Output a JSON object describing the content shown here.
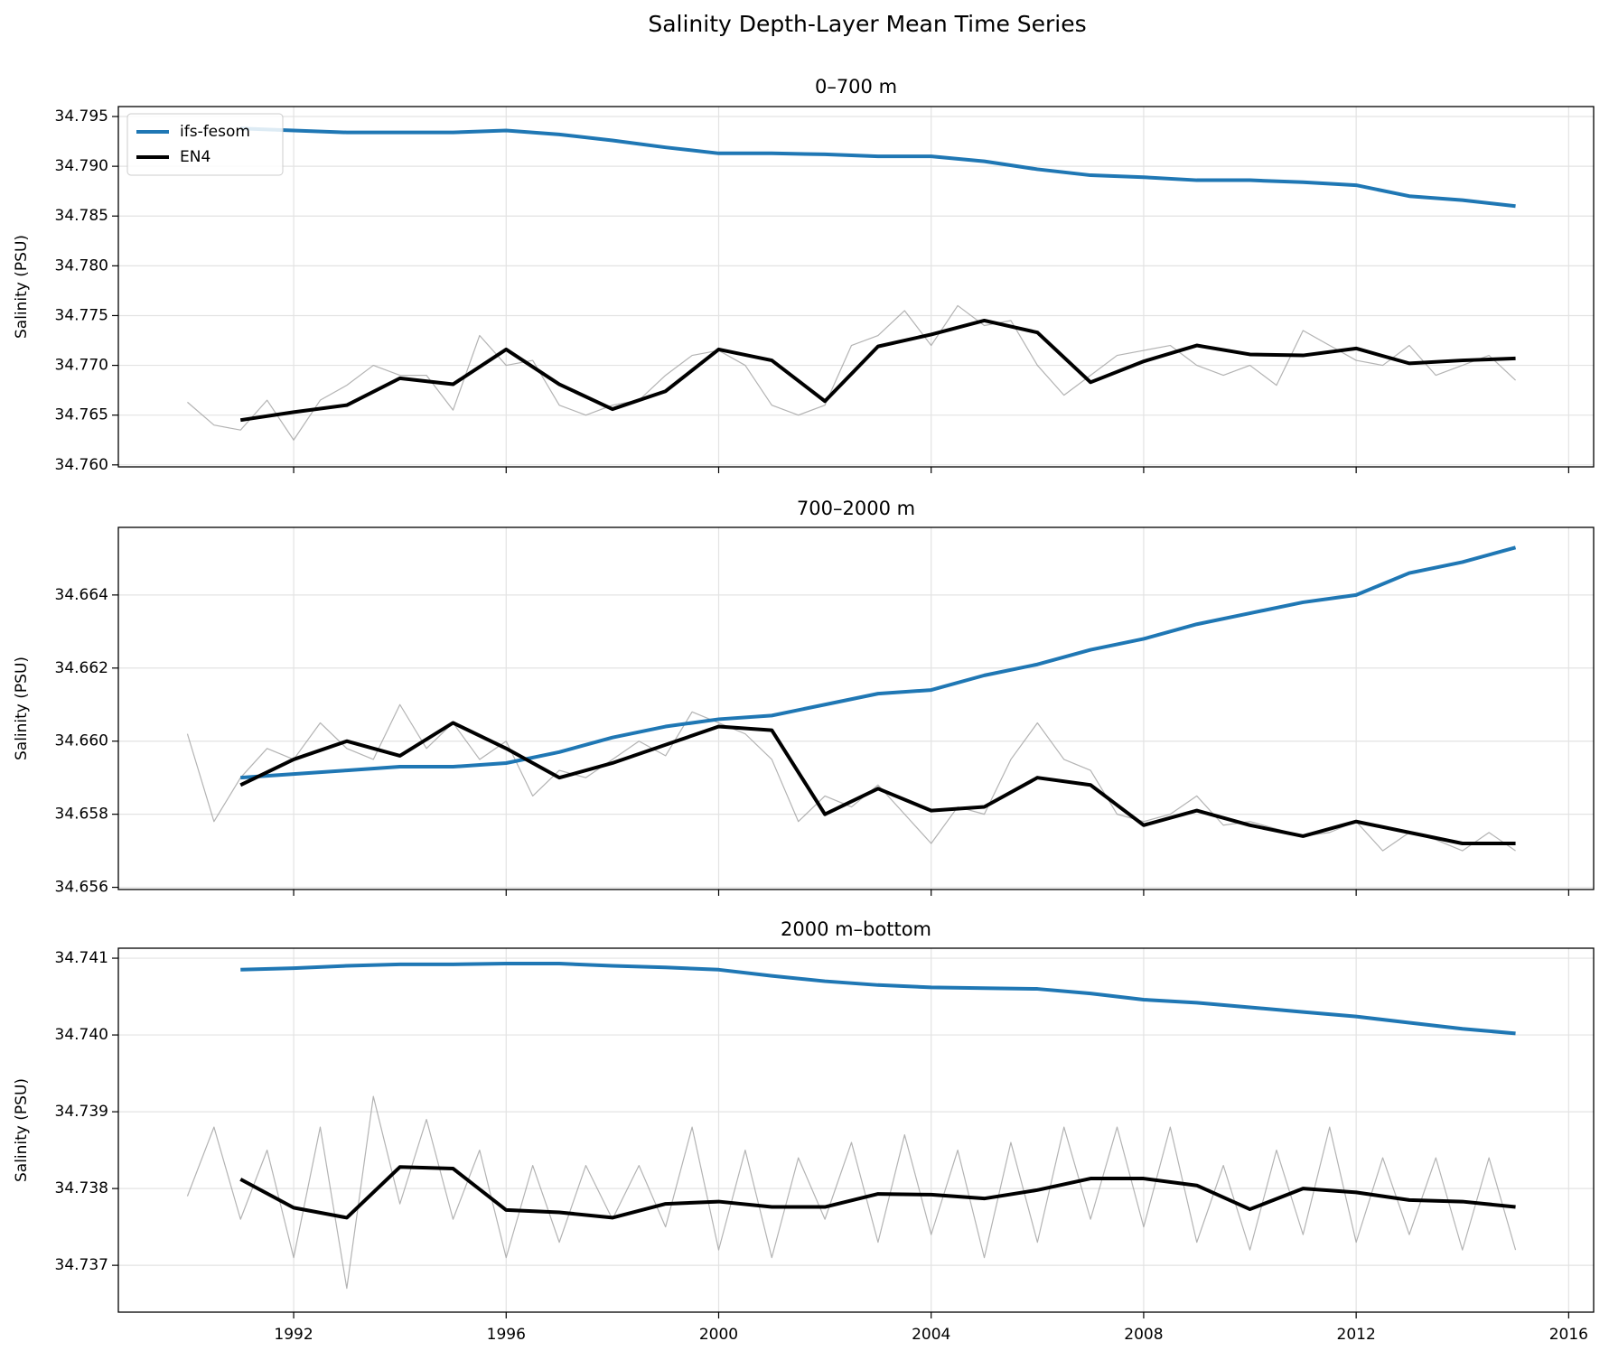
{
  "title": "Salinity Depth-Layer Mean Time Series",
  "chart_data": [
    {
      "type": "line",
      "title": "0–700 m",
      "ylabel": "Salinity (PSU)",
      "grid": true,
      "legend": "upper left",
      "xlim": [
        1988.7,
        2016.47
      ],
      "xticks": [
        1992,
        1996,
        2000,
        2004,
        2008,
        2012,
        2016
      ],
      "ylim": [
        34.7598,
        34.796
      ],
      "yticks": [
        {
          "value": 34.76,
          "label": "34.760"
        },
        34.765,
        {
          "value": 34.77,
          "label": "34.770"
        },
        34.775,
        {
          "value": 34.78,
          "label": "34.780"
        },
        34.785,
        {
          "value": 34.79,
          "label": "34.790"
        },
        34.795
      ],
      "series": [
        {
          "color": "#999999",
          "x": [
            1990,
            1990.5,
            1991,
            1991.5,
            1992,
            1992.5,
            1993,
            1993.5,
            1994,
            1994.5,
            1995,
            1995.5,
            1996,
            1996.5,
            1997,
            1997.5,
            1998,
            1998.5,
            1999,
            1999.5,
            2000,
            2000.5,
            2001,
            2001.5,
            2002,
            2002.5,
            2003,
            2003.5,
            2004,
            2004.5,
            2005,
            2005.5,
            2006,
            2006.5,
            2007,
            2007.5,
            2008,
            2008.5,
            2009,
            2009.5,
            2010,
            2010.5,
            2011,
            2011.5,
            2012,
            2012.5,
            2013,
            2013.5,
            2014,
            2014.5,
            2015
          ],
          "values": [
            34.7663,
            34.764,
            34.7635,
            34.7665,
            34.7625,
            34.7665,
            34.768,
            34.77,
            34.769,
            34.769,
            34.7655,
            34.773,
            34.77,
            34.7705,
            34.766,
            34.765,
            34.766,
            34.7665,
            34.769,
            34.771,
            34.7715,
            34.77,
            34.766,
            34.765,
            34.766,
            34.772,
            34.773,
            34.7755,
            34.772,
            34.776,
            34.774,
            34.7745,
            34.77,
            34.767,
            34.769,
            34.771,
            34.7715,
            34.772,
            34.77,
            34.769,
            34.77,
            34.768,
            34.7735,
            34.772,
            34.7705,
            34.77,
            34.772,
            34.769,
            34.77,
            34.771,
            34.7685
          ]
        },
        {
          "name": "ifs-fesom",
          "color": "#1f77b4",
          "x": [
            1991,
            1992,
            1993,
            1994,
            1995,
            1996,
            1997,
            1998,
            1999,
            2000,
            2001,
            2002,
            2003,
            2004,
            2005,
            2006,
            2007,
            2008,
            2009,
            2010,
            2011,
            2012,
            2013,
            2014,
            2015
          ],
          "values": [
            34.7938,
            34.7936,
            34.7934,
            34.7934,
            34.7934,
            34.7936,
            34.7932,
            34.7926,
            34.7919,
            34.7913,
            34.7913,
            34.7912,
            34.791,
            34.791,
            34.7905,
            34.7897,
            34.7891,
            34.7889,
            34.7886,
            34.7886,
            34.7884,
            34.7881,
            34.787,
            34.7866,
            34.786
          ]
        },
        {
          "name": "EN4",
          "color": "#000000",
          "x": [
            1991,
            1992,
            1993,
            1994,
            1995,
            1996,
            1997,
            1998,
            1999,
            2000,
            2001,
            2002,
            2003,
            2004,
            2005,
            2006,
            2007,
            2008,
            2009,
            2010,
            2011,
            2012,
            2013,
            2014,
            2015
          ],
          "values": [
            34.7645,
            34.7653,
            34.766,
            34.7687,
            34.7681,
            34.7716,
            34.7681,
            34.7656,
            34.7674,
            34.7716,
            34.7705,
            34.7664,
            34.7719,
            34.7731,
            34.7745,
            34.7733,
            34.7683,
            34.7704,
            34.772,
            34.7711,
            34.771,
            34.7717,
            34.7702,
            34.7705,
            34.7707
          ]
        }
      ]
    },
    {
      "type": "line",
      "title": "700–2000 m",
      "ylabel": "Salinity (PSU)",
      "grid": true,
      "xlim": [
        1988.7,
        2016.47
      ],
      "xticks": [
        1992,
        1996,
        2000,
        2004,
        2008,
        2012,
        2016
      ],
      "ylim": [
        34.65594,
        34.66585
      ],
      "yticks": [
        34.656,
        34.658,
        {
          "value": 34.66,
          "label": "34.660"
        },
        34.662,
        34.664
      ],
      "series": [
        {
          "color": "#999999",
          "x": [
            1990,
            1990.5,
            1991,
            1991.5,
            1992,
            1992.5,
            1993,
            1993.5,
            1994,
            1994.5,
            1995,
            1995.5,
            1996,
            1996.5,
            1997,
            1997.5,
            1998,
            1998.5,
            1999,
            1999.5,
            2000,
            2000.5,
            2001,
            2001.5,
            2002,
            2002.5,
            2003,
            2003.5,
            2004,
            2004.5,
            2005,
            2005.5,
            2006,
            2006.5,
            2007,
            2007.5,
            2008,
            2008.5,
            2009,
            2009.5,
            2010,
            2010.5,
            2011,
            2011.5,
            2012,
            2012.5,
            2013,
            2013.5,
            2014,
            2014.5,
            2015
          ],
          "values": [
            34.6602,
            34.6578,
            34.659,
            34.6598,
            34.6595,
            34.6605,
            34.6598,
            34.6595,
            34.661,
            34.6598,
            34.6605,
            34.6595,
            34.66,
            34.6585,
            34.6592,
            34.659,
            34.6595,
            34.66,
            34.6596,
            34.6608,
            34.6605,
            34.6602,
            34.6595,
            34.6578,
            34.6585,
            34.6582,
            34.6588,
            34.658,
            34.6572,
            34.6582,
            34.658,
            34.6595,
            34.6605,
            34.6595,
            34.6592,
            34.658,
            34.6578,
            34.658,
            34.6585,
            34.6577,
            34.6578,
            34.6576,
            34.6574,
            34.6575,
            34.6578,
            34.657,
            34.6575,
            34.6573,
            34.657,
            34.6575,
            34.657
          ]
        },
        {
          "name": "ifs-fesom",
          "color": "#1f77b4",
          "x": [
            1991,
            1992,
            1993,
            1994,
            1995,
            1996,
            1997,
            1998,
            1999,
            2000,
            2001,
            2002,
            2003,
            2004,
            2005,
            2006,
            2007,
            2008,
            2009,
            2010,
            2011,
            2012,
            2013,
            2014,
            2015
          ],
          "values": [
            34.659,
            34.6591,
            34.6592,
            34.6593,
            34.6593,
            34.6594,
            34.6597,
            34.6601,
            34.6604,
            34.6606,
            34.6607,
            34.661,
            34.6613,
            34.6614,
            34.6618,
            34.6621,
            34.6625,
            34.6628,
            34.6632,
            34.6635,
            34.6638,
            34.664,
            34.6646,
            34.6649,
            34.6653
          ]
        },
        {
          "name": "EN4",
          "color": "#000000",
          "x": [
            1991,
            1992,
            1993,
            1994,
            1995,
            1996,
            1997,
            1998,
            1999,
            2000,
            2001,
            2002,
            2003,
            2004,
            2005,
            2006,
            2007,
            2008,
            2009,
            2010,
            2011,
            2012,
            2013,
            2014,
            2015
          ],
          "values": [
            34.6588,
            34.6595,
            34.66,
            34.6596,
            34.6605,
            34.6598,
            34.659,
            34.6594,
            34.6599,
            34.6604,
            34.6603,
            34.658,
            34.6587,
            34.6581,
            34.6582,
            34.659,
            34.6588,
            34.6577,
            34.6581,
            34.6577,
            34.6574,
            34.6578,
            34.6575,
            34.6572,
            34.6572
          ]
        }
      ]
    },
    {
      "type": "line",
      "title": "2000 m–bottom",
      "ylabel": "Salinity (PSU)",
      "grid": true,
      "xlim": [
        1988.7,
        2016.47
      ],
      "xticks": [
        1992,
        1996,
        2000,
        2004,
        2008,
        2012,
        2016
      ],
      "ylim": [
        34.73639,
        34.74113
      ],
      "yticks": [
        34.737,
        34.738,
        34.739,
        {
          "value": 34.74,
          "label": "34.740"
        },
        34.741
      ],
      "series": [
        {
          "color": "#999999",
          "x": [
            1990,
            1990.5,
            1991,
            1991.5,
            1992,
            1992.5,
            1993,
            1993.5,
            1994,
            1994.5,
            1995,
            1995.5,
            1996,
            1996.5,
            1997,
            1997.5,
            1998,
            1998.5,
            1999,
            1999.5,
            2000,
            2000.5,
            2001,
            2001.5,
            2002,
            2002.5,
            2003,
            2003.5,
            2004,
            2004.5,
            2005,
            2005.5,
            2006,
            2006.5,
            2007,
            2007.5,
            2008,
            2008.5,
            2009,
            2009.5,
            2010,
            2010.5,
            2011,
            2011.5,
            2012,
            2012.5,
            2013,
            2013.5,
            2014,
            2014.5,
            2015
          ],
          "values": [
            34.7379,
            34.7388,
            34.7376,
            34.7385,
            34.7371,
            34.7388,
            34.7367,
            34.7392,
            34.7378,
            34.7389,
            34.7376,
            34.7385,
            34.7371,
            34.7383,
            34.7373,
            34.7383,
            34.7376,
            34.7383,
            34.7375,
            34.7388,
            34.7372,
            34.7385,
            34.7371,
            34.7384,
            34.7376,
            34.7386,
            34.7373,
            34.7387,
            34.7374,
            34.7385,
            34.7371,
            34.7386,
            34.7373,
            34.7388,
            34.7376,
            34.7388,
            34.7375,
            34.7388,
            34.7373,
            34.7383,
            34.7372,
            34.7385,
            34.7374,
            34.7388,
            34.7373,
            34.7384,
            34.7374,
            34.7384,
            34.7372,
            34.7384,
            34.7372
          ]
        },
        {
          "name": "ifs-fesom",
          "color": "#1f77b4",
          "x": [
            1991,
            1992,
            1993,
            1994,
            1995,
            1996,
            1997,
            1998,
            1999,
            2000,
            2001,
            2002,
            2003,
            2004,
            2005,
            2006,
            2007,
            2008,
            2009,
            2010,
            2011,
            2012,
            2013,
            2014,
            2015
          ],
          "values": [
            34.74085,
            34.74087,
            34.7409,
            34.74092,
            34.74092,
            34.74093,
            34.74093,
            34.7409,
            34.74088,
            34.74085,
            34.74077,
            34.7407,
            34.74065,
            34.74062,
            34.74061,
            34.7406,
            34.74054,
            34.74046,
            34.74042,
            34.74036,
            34.7403,
            34.74024,
            34.74016,
            34.74008,
            34.74002
          ]
        },
        {
          "name": "EN4",
          "color": "#000000",
          "x": [
            1991,
            1992,
            1993,
            1994,
            1995,
            1996,
            1997,
            1998,
            1999,
            2000,
            2001,
            2002,
            2003,
            2004,
            2005,
            2006,
            2007,
            2008,
            2009,
            2010,
            2011,
            2012,
            2013,
            2014,
            2015
          ],
          "values": [
            34.73812,
            34.73775,
            34.73762,
            34.73828,
            34.73826,
            34.73772,
            34.73769,
            34.73762,
            34.7378,
            34.73783,
            34.73776,
            34.73776,
            34.73793,
            34.73792,
            34.73787,
            34.73798,
            34.73813,
            34.73813,
            34.73804,
            34.73773,
            34.738,
            34.73795,
            34.73785,
            34.73783,
            34.73776
          ]
        }
      ]
    }
  ]
}
